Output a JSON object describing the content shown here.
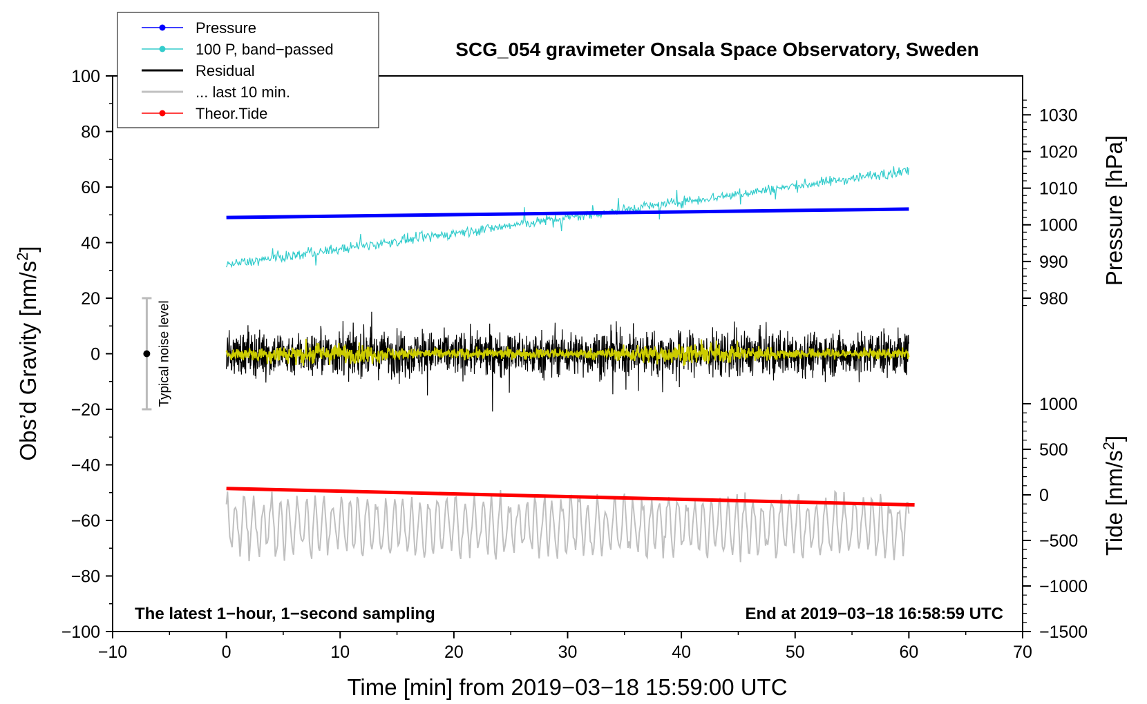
{
  "chart_data": {
    "type": "line",
    "title": "SCG_054 gravimeter Onsala Space Observatory, Sweden",
    "xlabel": "Time [min] from 2019−03−18 15:59:00 UTC",
    "ylabel": "Obs’d Gravity [nm/s2]",
    "ylabel_parts": [
      "Obs’d Gravity [nm/s",
      "2",
      "]"
    ],
    "xlim": [
      -10,
      70
    ],
    "ylim": [
      -100,
      100
    ],
    "xticks": [
      -10,
      0,
      10,
      20,
      30,
      40,
      50,
      60,
      70
    ],
    "xtick_labels": [
      "−10",
      "0",
      "10",
      "20",
      "30",
      "40",
      "50",
      "60",
      "70"
    ],
    "yticks": [
      -100,
      -80,
      -60,
      -40,
      -20,
      0,
      20,
      40,
      60,
      80,
      100
    ],
    "ytick_labels": [
      "−100",
      "−80",
      "−60",
      "−40",
      "−20",
      "0",
      "20",
      "40",
      "60",
      "80",
      "100"
    ],
    "right_axis_pressure": {
      "label": "Pressure [hPa]",
      "ticks": [
        980,
        990,
        1000,
        1010,
        1020,
        1030
      ],
      "tick_labels": [
        "980",
        "990",
        "1000",
        "1010",
        "1020",
        "1030"
      ],
      "range_on_left_axis": [
        [
          980,
          20
        ],
        [
          1030,
          86
        ]
      ]
    },
    "right_axis_tide": {
      "label": "Tide [nm/s2]",
      "label_parts": [
        "Tide [nm/s",
        "2",
        "]"
      ],
      "ticks": [
        -1500,
        -1000,
        -500,
        0,
        500,
        1000
      ],
      "tick_labels": [
        "−1500",
        "−1000",
        "−500",
        "0",
        "500",
        "1000"
      ],
      "range_on_left_axis": [
        [
          -1500,
          -100
        ],
        [
          1000,
          -18
        ]
      ]
    },
    "legend": {
      "position": "top-left",
      "entries": [
        {
          "label": "Pressure",
          "color": "#0000ff",
          "marker": true
        },
        {
          "label": "100 P, band−passed",
          "color": "#33cccc",
          "marker": true
        },
        {
          "label": "Residual",
          "color": "#000000",
          "marker": false
        },
        {
          "label": "... last 10 min.",
          "color": "#c0c0c0",
          "marker": false
        },
        {
          "label": "Theor.Tide",
          "color": "#ff0000",
          "marker": true
        }
      ]
    },
    "series": [
      {
        "name": "Pressure",
        "color": "#0000ff",
        "axis": "pressure",
        "x_range": [
          0,
          60
        ],
        "start": 1002.0,
        "end": 1004.3
      },
      {
        "name": "100 P, band−passed",
        "color": "#33cccc",
        "axis": "gravity",
        "x_range": [
          0,
          60
        ],
        "start": 32,
        "end": 66,
        "noise_amplitude": 3
      },
      {
        "name": "Residual",
        "color": "#000000",
        "axis": "gravity",
        "x_range": [
          0,
          60
        ],
        "mean": 0,
        "typical_range": [
          -18,
          18
        ],
        "extreme_range": [
          -23,
          24
        ]
      },
      {
        "name": "Residual (smoothed)",
        "color": "#cccc00",
        "axis": "gravity",
        "x_range": [
          0,
          60
        ],
        "mean": 0,
        "typical_range": [
          -5,
          5
        ]
      },
      {
        "name": "... last 10 min.",
        "color": "#c0c0c0",
        "axis": "gravity",
        "x_range": [
          0,
          60
        ],
        "mean": -62,
        "range": [
          -78,
          -43
        ]
      },
      {
        "name": "Theor.Tide",
        "color": "#ff0000",
        "axis": "tide",
        "x_range": [
          0,
          60.5
        ],
        "start": 70,
        "end": -110
      }
    ],
    "noise_level": {
      "label": "Typical noise level",
      "x": -7,
      "center": 0,
      "range": [
        -20,
        20
      ],
      "color": "#bbbbbb"
    },
    "annotations": {
      "bottom_left": "The latest 1−hour, 1−second sampling",
      "bottom_right": "End at 2019−03−18 16:58:59 UTC"
    }
  }
}
